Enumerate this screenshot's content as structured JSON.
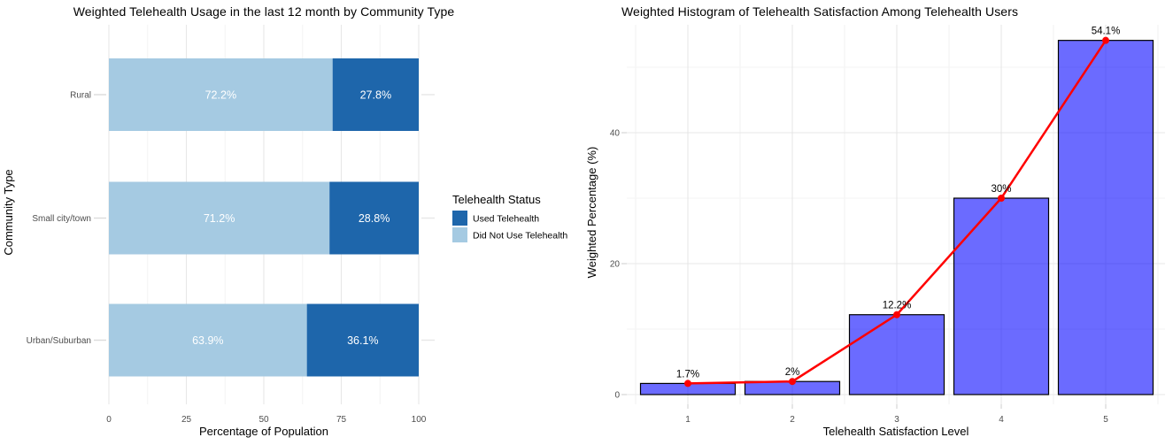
{
  "chart_data": [
    {
      "id": "usage",
      "type": "bar",
      "orientation": "horizontal",
      "stacked": true,
      "title": "Weighted Telehealth Usage in the last 12 month by Community Type",
      "xlabel": "Percentage of Population",
      "ylabel": "Community Type",
      "xlim": [
        0,
        100
      ],
      "x_ticks": [
        0,
        25,
        50,
        75,
        100
      ],
      "x_minor_step": 12.5,
      "grid": true,
      "categories": [
        "Rural",
        "Small city/town",
        "Urban/Suburban"
      ],
      "series": [
        {
          "name": "Did Not Use Telehealth",
          "color": "#A5CAE2",
          "values": [
            72.2,
            71.2,
            63.9
          ]
        },
        {
          "name": "Used Telehealth",
          "color": "#1E66AB",
          "values": [
            27.8,
            28.8,
            36.1
          ]
        }
      ],
      "bar_labels": [
        [
          "72.2%",
          "27.8%"
        ],
        [
          "71.2%",
          "28.8%"
        ],
        [
          "63.9%",
          "36.1%"
        ]
      ],
      "legend": {
        "title": "Telehealth Status",
        "position": "right",
        "items": [
          {
            "label": "Used Telehealth",
            "color": "#1E66AB"
          },
          {
            "label": "Did Not Use Telehealth",
            "color": "#A5CAE2"
          }
        ]
      }
    },
    {
      "id": "satisfaction",
      "type": "bar+line",
      "orientation": "vertical",
      "title": "Weighted Histogram of Telehealth Satisfaction Among Telehealth Users",
      "xlabel": "Telehealth Satisfaction Level",
      "ylabel": "Weighted Percentage (%)",
      "ylim": [
        0,
        57
      ],
      "y_ticks": [
        0,
        20,
        40
      ],
      "y_minor_step": 10,
      "grid": true,
      "categories": [
        "1",
        "2",
        "3",
        "4",
        "5"
      ],
      "values": [
        1.7,
        2,
        12.2,
        30,
        54.1
      ],
      "point_labels": [
        "1.7%",
        "2%",
        "12.2%",
        "30%",
        "54.1%"
      ],
      "bar_color": "#0000FF",
      "bar_opacity": 0.58,
      "bar_stroke": "#000000",
      "line_color": "#FF0000",
      "legend": null
    }
  ],
  "palette": {
    "used_telehealth_blue": "#1E66AB",
    "did_not_use_blue": "#A5CAE2",
    "histogram_bar_effective": "#6666FF",
    "trend_red": "#FF0000",
    "grid_major": "#E7E7E7",
    "grid_minor": "#F3F3F3",
    "axis_tick_mark": "#DCDCDC",
    "tick_label_gray": "#4D4D4D",
    "text_black": "#000000",
    "bar_value_label_white": "#FFFFFF",
    "background": "#FFFFFF"
  }
}
